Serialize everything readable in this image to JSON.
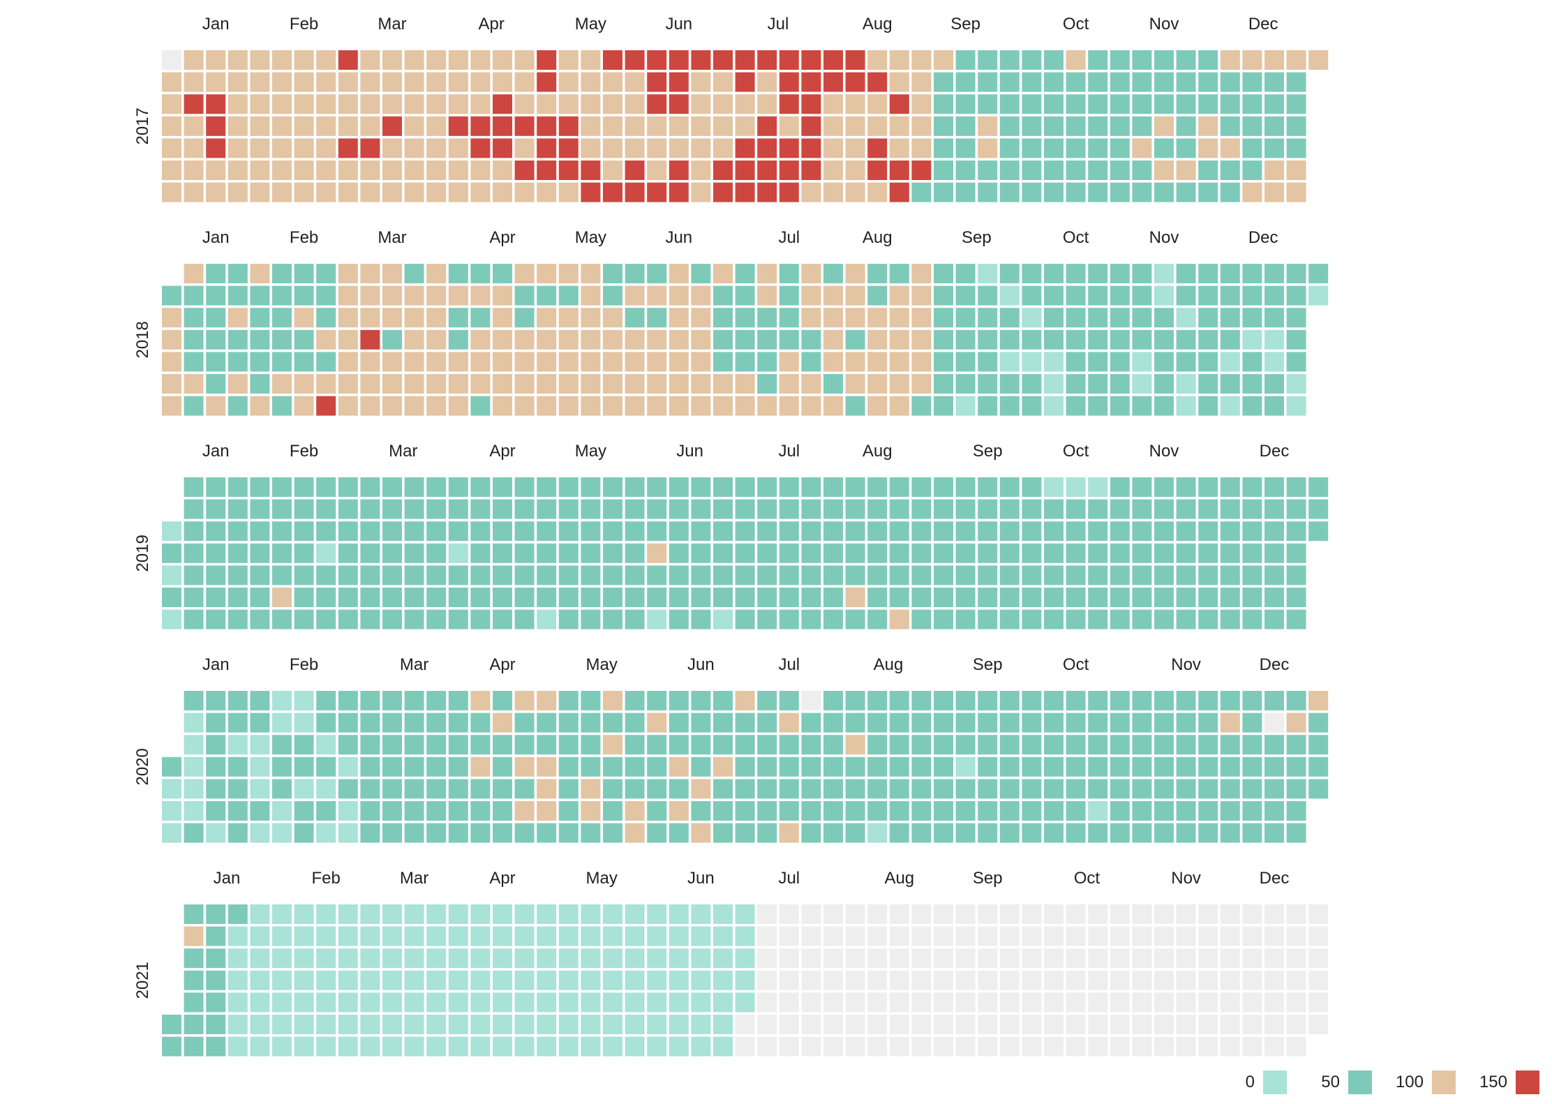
{
  "chart_data": {
    "type": "heatmap",
    "title": "",
    "xlabel": "",
    "ylabel": "",
    "years": [
      "2017",
      "2018",
      "2019",
      "2020",
      "2021"
    ],
    "month_labels": [
      "Jan",
      "Feb",
      "Mar",
      "Apr",
      "May",
      "Jun",
      "Jul",
      "Aug",
      "Sep",
      "Oct",
      "Nov",
      "Dec"
    ],
    "missing_color": "#eeeeee",
    "legend": {
      "entries": [
        {
          "label": "0",
          "color": "#a9e2d6"
        },
        {
          "label": "50",
          "color": "#7ecab9"
        },
        {
          "label": "100",
          "color": "#e3c4a3"
        },
        {
          "label": "150",
          "color": "#cd4740"
        }
      ]
    },
    "levels": {
      "2017": {
        "red": [
          "01-10",
          "01-17",
          "01-18",
          "01-19",
          "02-26",
          "03-02",
          "03-09",
          "03-15",
          "04-05",
          "04-12",
          "04-13",
          "04-18",
          "04-19",
          "04-20",
          "04-26",
          "04-28",
          "04-30",
          "05-01",
          "05-03",
          "05-04",
          "05-05",
          "05-10",
          "05-11",
          "05-12",
          "05-19",
          "05-20",
          "05-21",
          "05-27",
          "05-28",
          "06-02",
          "06-03",
          "06-04",
          "06-05",
          "06-06",
          "06-10",
          "06-11",
          "06-12",
          "06-13",
          "06-16",
          "06-17",
          "06-18",
          "06-25",
          "06-30",
          "07-01",
          "07-02",
          "07-03",
          "07-06",
          "07-07",
          "07-08",
          "07-09",
          "07-12",
          "07-13",
          "07-14",
          "07-15",
          "07-16",
          "07-17",
          "07-18",
          "07-20",
          "07-21",
          "07-22",
          "07-23",
          "07-24",
          "07-25",
          "07-26",
          "07-27",
          "07-28",
          "07-30",
          "07-31",
          "08-06",
          "08-07",
          "08-14",
          "08-17",
          "08-18",
          "08-22",
          "08-25",
          "08-26",
          "09-01"
        ],
        "tan_ranges": [
          [
            "01-02",
            "08-31"
          ],
          [
            "09-03",
            "09-03"
          ],
          [
            "09-20",
            "09-21"
          ],
          [
            "10-15",
            "10-15"
          ],
          [
            "11-09",
            "11-09"
          ],
          [
            "11-15",
            "11-15"
          ],
          [
            "11-17",
            "11-17"
          ],
          [
            "11-24",
            "11-24"
          ],
          [
            "11-29",
            "11-30"
          ],
          [
            "11-31",
            "11-31"
          ],
          [
            "12-03",
            "12-03"
          ],
          [
            "12-07",
            "12-07"
          ],
          [
            "12-10",
            "12-10"
          ],
          [
            "12-16",
            "12-17"
          ],
          [
            "12-22",
            "12-24"
          ],
          [
            "12-29",
            "12-31"
          ]
        ],
        "mint": [],
        "empty_before": "01-02"
      },
      "2018": {
        "red": [
          "03-07",
          "02-24"
        ],
        "tan_ranges": [
          [
            "01-01",
            "08-31"
          ]
        ],
        "teal_override": [
          "01-01",
          "01-08",
          "01-09",
          "01-10",
          "01-11",
          "01-13",
          "01-14",
          "01-15",
          "01-16",
          "01-17",
          "01-18",
          "01-19",
          "01-21",
          "01-22",
          "01-24",
          "01-25",
          "01-27",
          "01-29",
          "01-30",
          "01-31",
          "02-01",
          "02-02",
          "02-04",
          "02-05",
          "02-06",
          "02-07",
          "02-08",
          "02-10",
          "02-11",
          "02-12",
          "02-14",
          "02-15",
          "02-18",
          "02-19",
          "02-20",
          "02-22",
          "03-14",
          "03-18",
          "04-01",
          "04-03",
          "04-04",
          "04-08",
          "04-10",
          "04-14",
          "04-15",
          "04-23",
          "04-24",
          "04-30",
          "05-07",
          "05-20",
          "05-21",
          "05-27",
          "05-29",
          "06-03",
          "06-05",
          "06-17",
          "06-25",
          "06-26",
          "06-27",
          "06-28",
          "07-01",
          "07-02",
          "07-03",
          "07-04",
          "07-05",
          "07-10",
          "07-11",
          "07-12",
          "07-13",
          "07-15",
          "07-16",
          "07-17",
          "07-18",
          "07-25",
          "07-26",
          "07-29",
          "08-03",
          "08-08",
          "08-11",
          "08-12",
          "08-13",
          "08-19"
        ],
        "mint": [
          "09-15",
          "09-16",
          "09-24",
          "09-27",
          "10-02",
          "10-04",
          "10-11",
          "10-12",
          "10-13",
          "11-08",
          "11-09",
          "11-11",
          "11-12",
          "11-20",
          "11-23",
          "11-24",
          "12-06",
          "12-08",
          "12-12",
          "12-19",
          "12-20",
          "12-28",
          "12-29",
          "12-31"
        ]
      },
      "2019": {
        "tan": [
          "02-08",
          "06-05",
          "08-09",
          "08-24"
        ],
        "mint": [
          "01-01",
          "01-03",
          "01-05",
          "02-20",
          "04-03",
          "05-04",
          "06-08",
          "06-29",
          "10-06",
          "10-13",
          "10-20"
        ]
      },
      "2020": {
        "mint_ranges": [
          [
            "01-01",
            "02-29"
          ]
        ],
        "tan": [
          "04-05",
          "04-08",
          "04-13",
          "04-19",
          "04-22",
          "04-24",
          "04-26",
          "04-29",
          "04-30",
          "05-01",
          "05-14",
          "05-15",
          "05-17",
          "05-19",
          "05-29",
          "05-30",
          "06-01",
          "06-10",
          "06-12",
          "06-18",
          "06-20",
          "06-24",
          "06-28",
          "07-13",
          "07-18",
          "08-04",
          "11-30",
          "12-21",
          "12-27"
        ],
        "teal_in_mint": [
          "01-01",
          "01-05",
          "01-11",
          "01-12",
          "01-13",
          "01-14",
          "01-15",
          "01-16",
          "01-17",
          "01-19",
          "01-20",
          "01-22",
          "01-23",
          "01-24",
          "01-25",
          "01-26",
          "01-27",
          "01-31",
          "02-04",
          "02-05",
          "02-06",
          "02-11",
          "02-12",
          "02-14",
          "02-15",
          "02-16",
          "02-17",
          "02-19",
          "02-21",
          "02-23",
          "02-24",
          "02-25",
          "02-27"
        ],
        "empty": [
          "07-19",
          "12-14"
        ],
        "mint_other": [
          "08-15",
          "09-09",
          "10-23"
        ]
      },
      "2021": {
        "teal_ranges": [
          [
            "01-01",
            "01-17"
          ]
        ],
        "tan": [
          "01-04"
        ],
        "mint_ranges": [
          [
            "01-18",
            "07-01"
          ]
        ],
        "last_day": "07-01"
      }
    }
  }
}
